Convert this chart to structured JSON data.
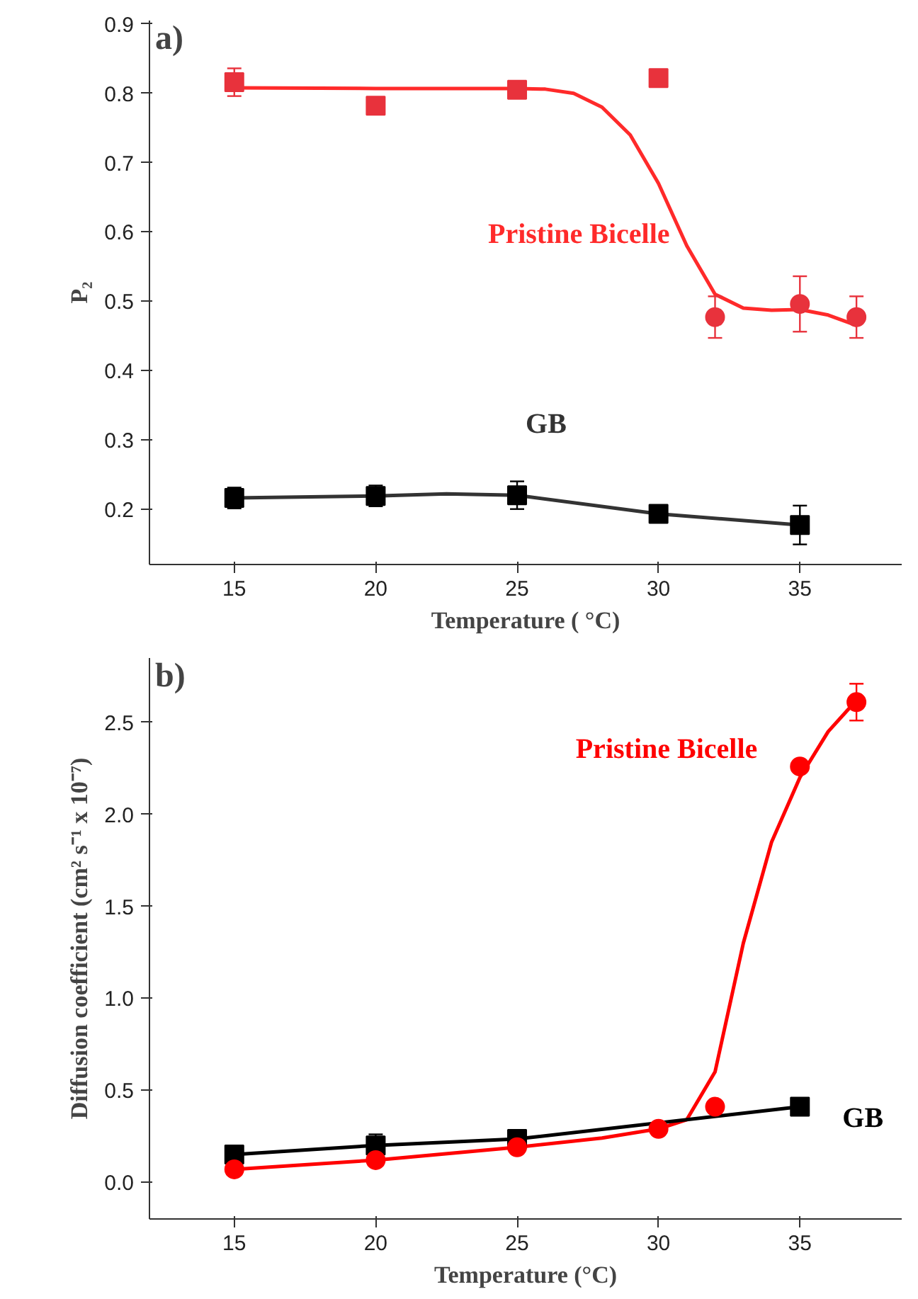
{
  "chart_data": [
    {
      "type": "scatter",
      "xlabel": "Temperature ( °C)",
      "ylabel": "P₂",
      "xlim": [
        12,
        38.6
      ],
      "ylim": [
        0.12,
        0.905
      ],
      "xticks": [
        15,
        20,
        25,
        30,
        35
      ],
      "yticks": [
        {
          "value": 0.2,
          "label": "0.2"
        },
        {
          "value": 0.3,
          "label": "0.3"
        },
        {
          "value": 0.4,
          "label": "0.4"
        },
        {
          "value": 0.5,
          "label": "0.5"
        },
        {
          "value": 0.6,
          "label": "0.6"
        },
        {
          "value": 0.7,
          "label": "0.7"
        },
        {
          "value": 0.8,
          "label": "0.8"
        },
        {
          "value": 0.9,
          "label": "0.9"
        }
      ],
      "grid": false,
      "annotations": [
        "a)"
      ],
      "series": [
        {
          "type": "line",
          "name": "Pristine Bicelle",
          "color": "#ff2a2a",
          "marker": "none",
          "x": [
            15,
            20,
            25,
            26,
            27,
            28,
            29,
            30,
            31,
            32,
            33,
            34,
            35,
            36,
            37
          ],
          "values": [
            0.808,
            0.807,
            0.807,
            0.806,
            0.8,
            0.78,
            0.74,
            0.67,
            0.58,
            0.51,
            0.49,
            0.487,
            0.488,
            0.48,
            0.465
          ]
        },
        {
          "type": "line",
          "name": "GB",
          "color": "#333333",
          "marker": "none",
          "x": [
            15,
            20,
            22.5,
            25,
            30,
            35
          ],
          "values": [
            0.216,
            0.219,
            0.222,
            0.22,
            0.193,
            0.177
          ]
        },
        {
          "color": "#e8323c",
          "marker": "square",
          "x": [
            15,
            20,
            25,
            30
          ],
          "values": [
            0.816,
            0.782,
            0.805,
            0.822
          ],
          "errors": [
            0.02,
            0.01,
            0.01,
            0.01
          ]
        },
        {
          "color": "#e8323c",
          "marker": "circle",
          "x": [
            32,
            35,
            37
          ],
          "values": [
            0.477,
            0.496,
            0.477
          ],
          "errors": [
            0.03,
            0.04,
            0.03
          ]
        },
        {
          "color": "#000000",
          "marker": "square",
          "x": [
            15,
            20,
            25,
            30,
            35
          ],
          "values": [
            0.216,
            0.219,
            0.22,
            0.193,
            0.177
          ],
          "errors": [
            0.015,
            0.015,
            0.02,
            0.01,
            0.028
          ]
        }
      ]
    },
    {
      "type": "scatter",
      "xlabel": "Temperature (°C)",
      "ylabel": "Diffusion coefficient (cm² s⁻¹ x 10⁻⁷)",
      "xlim": [
        12,
        38.6
      ],
      "ylim": [
        -0.2,
        2.85
      ],
      "xticks": [
        15,
        20,
        25,
        30,
        35
      ],
      "yticks": [
        {
          "value": 0,
          "label": "0.0"
        },
        {
          "value": 0.5,
          "label": "0.5"
        },
        {
          "value": 1,
          "label": "1.0"
        },
        {
          "value": 1.5,
          "label": "1.5"
        },
        {
          "value": 2,
          "label": "2.0"
        },
        {
          "value": 2.5,
          "label": "2.5"
        }
      ],
      "grid": false,
      "annotations": [
        "b)"
      ],
      "series": [
        {
          "type": "line",
          "name": "Pristine Bicelle",
          "color": "#ff0000",
          "marker": "none",
          "x": [
            15,
            20,
            25,
            28,
            30,
            31,
            32,
            33,
            34,
            35,
            36,
            37
          ],
          "values": [
            0.07,
            0.12,
            0.19,
            0.24,
            0.29,
            0.34,
            0.6,
            1.3,
            1.85,
            2.2,
            2.45,
            2.62
          ]
        },
        {
          "type": "line",
          "name": "GB",
          "color": "#000000",
          "marker": "none",
          "x": [
            15,
            20,
            25,
            35
          ],
          "values": [
            0.15,
            0.2,
            0.235,
            0.41
          ]
        },
        {
          "color": "#000000",
          "marker": "square",
          "x": [
            15,
            20,
            25,
            35
          ],
          "values": [
            0.15,
            0.2,
            0.235,
            0.41
          ],
          "errors": [
            0.03,
            0.06,
            0.02,
            0.02
          ]
        },
        {
          "color": "#ff0000",
          "marker": "circle",
          "x": [
            15,
            20,
            25,
            30,
            32,
            35,
            37
          ],
          "values": [
            0.07,
            0.12,
            0.19,
            0.29,
            0.41,
            2.26,
            2.61
          ],
          "errors": [
            0.03,
            0.02,
            0.02,
            0.02,
            0.02,
            0.03,
            0.1
          ]
        }
      ]
    }
  ]
}
